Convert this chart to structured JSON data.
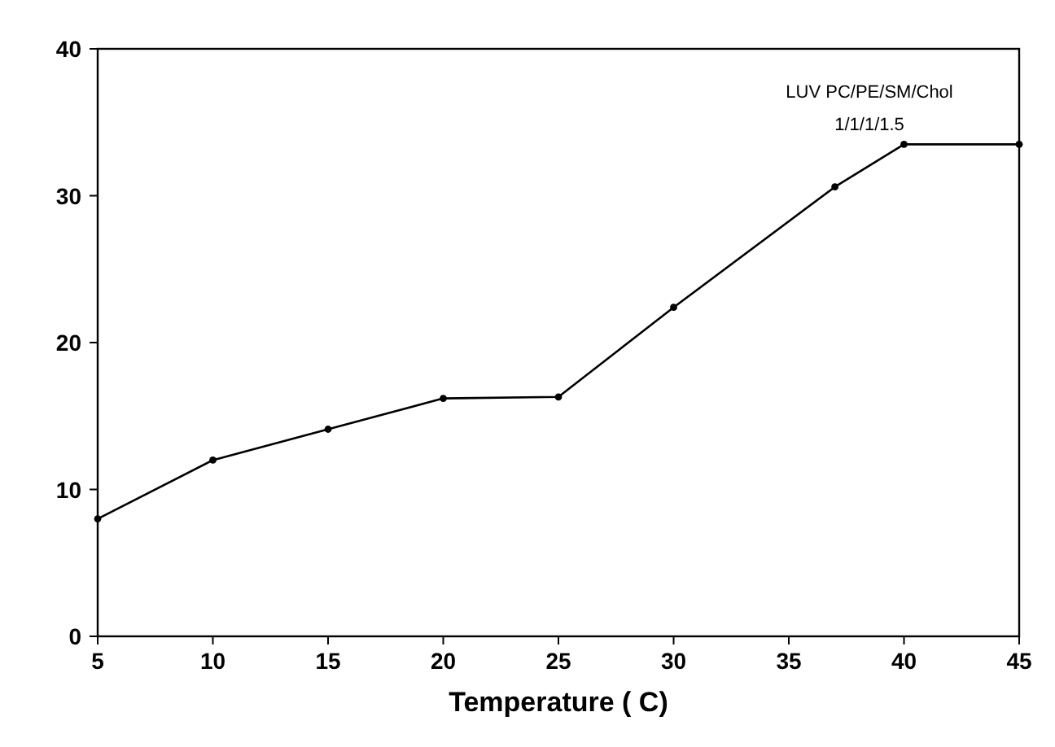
{
  "chart_data": {
    "type": "line",
    "xlabel": "Temperature ( C)",
    "x": [
      5,
      10,
      15,
      20,
      25,
      30,
      37,
      40,
      45
    ],
    "series": [
      {
        "color": "#000000",
        "values": [
          8,
          12,
          14.1,
          16.2,
          16.3,
          22.4,
          30.6,
          33.5,
          33.5
        ]
      }
    ],
    "xlim": [
      5,
      45
    ],
    "xticks": [
      5,
      10,
      15,
      20,
      25,
      30,
      35,
      40,
      45
    ],
    "ylim": [
      0,
      40
    ],
    "yticks": [
      0,
      10,
      20,
      30,
      40
    ],
    "annotations": [
      "LUV PC/PE/SM/Chol",
      "1/1/1/1.5"
    ],
    "marker": "circle",
    "line_style": "solid"
  }
}
